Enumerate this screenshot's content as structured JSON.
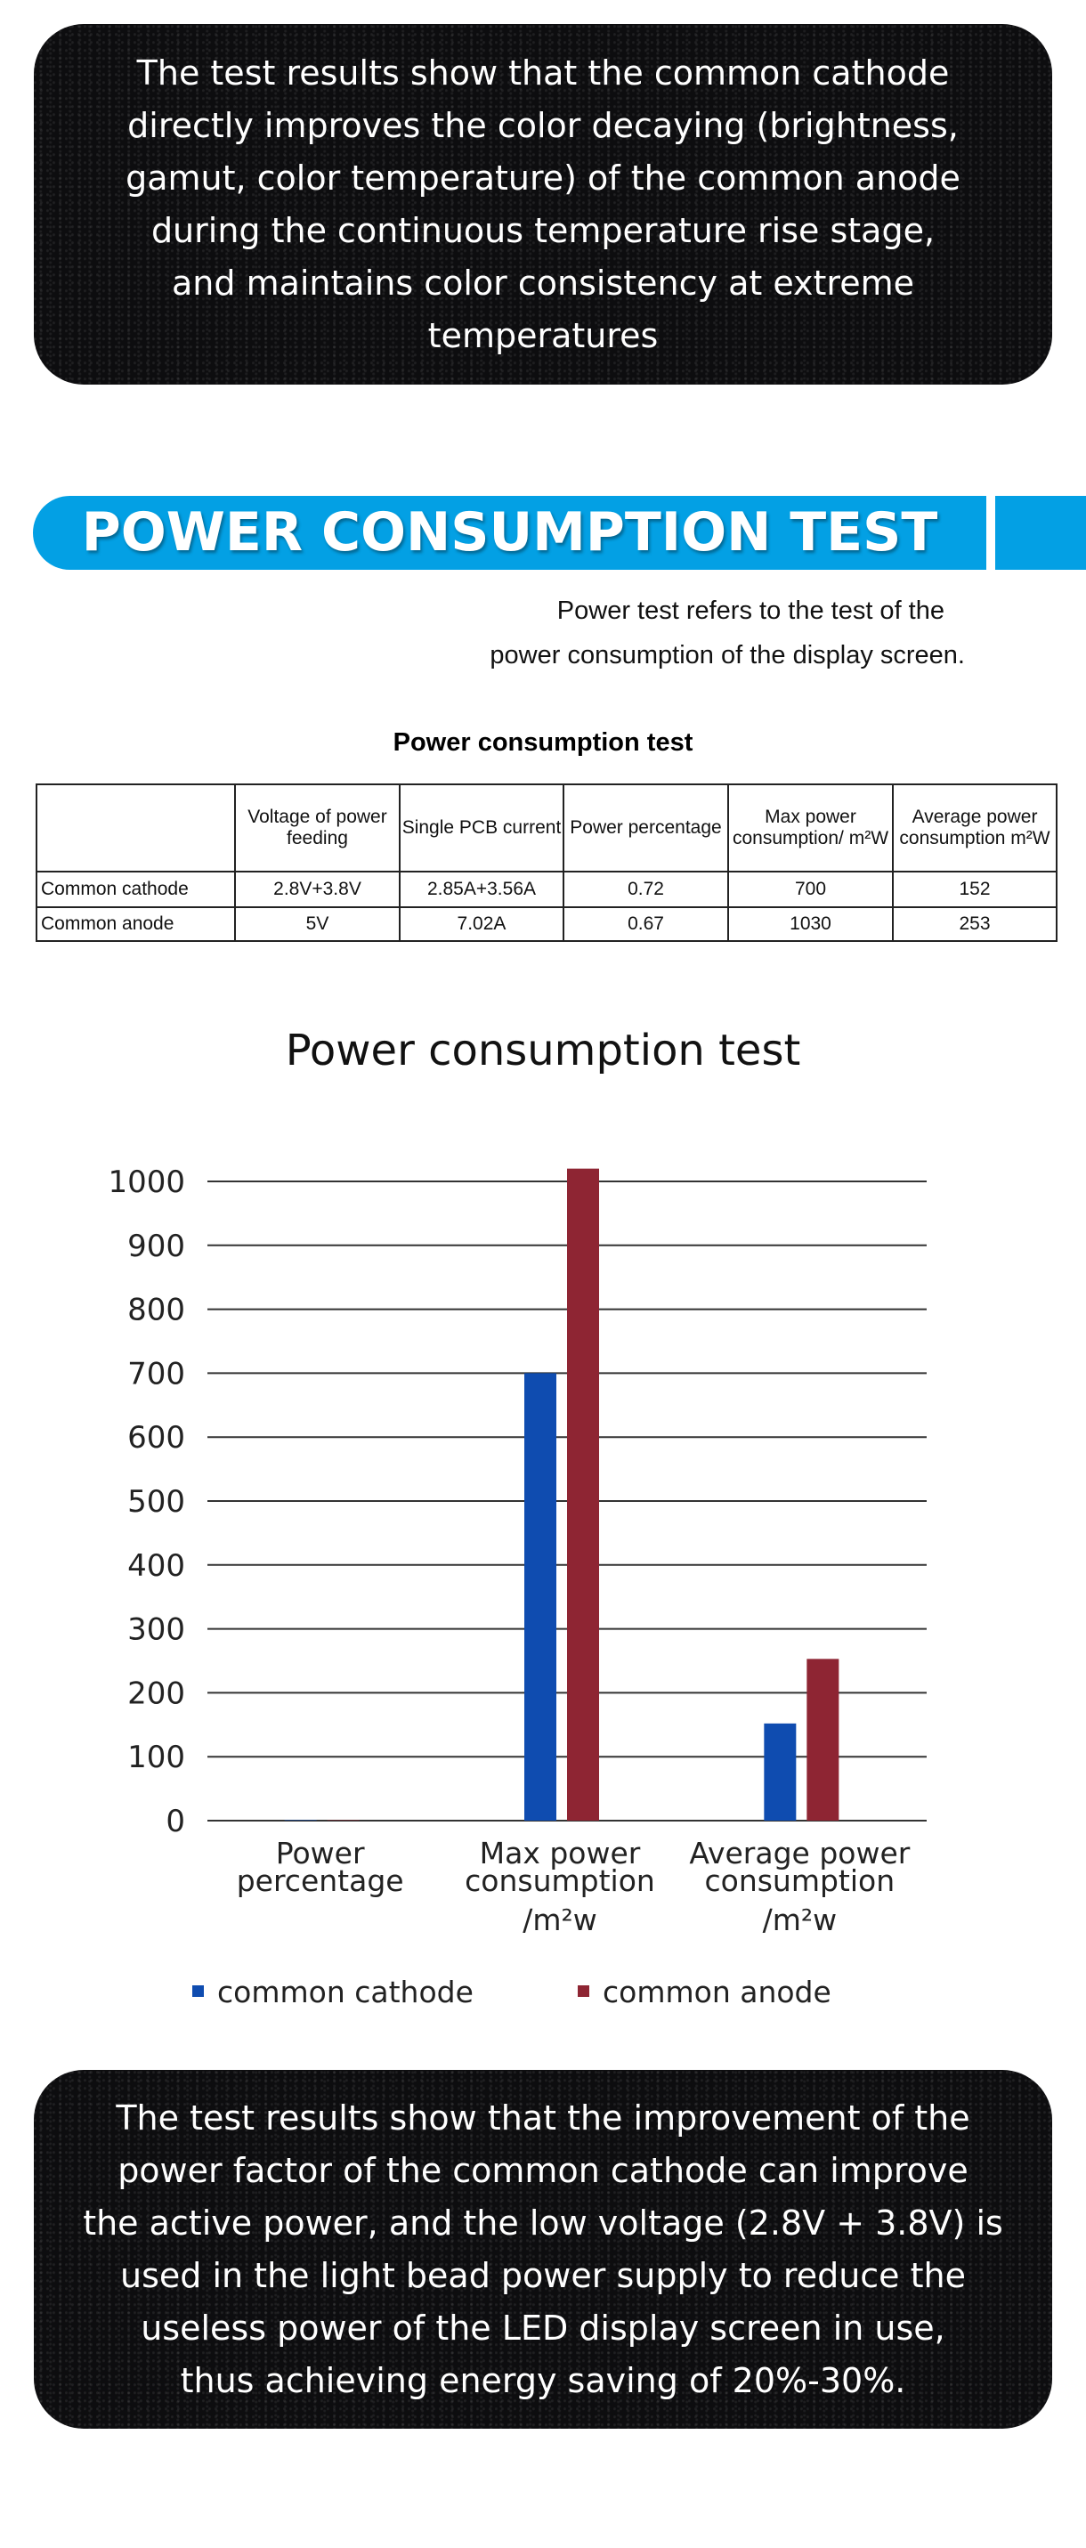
{
  "intro_box": {
    "lines": [
      "The test results show that the common cathode",
      "directly improves the color decaying (brightness,",
      "gamut, color temperature) of the common anode",
      "during the continuous temperature rise stage,",
      "and maintains color consistency at extreme",
      "temperatures"
    ]
  },
  "section": {
    "title": "POWER CONSUMPTION TEST",
    "description": [
      "Power test refers to the test of the",
      "power consumption of the display screen."
    ]
  },
  "table": {
    "title": "Power consumption test",
    "headers": [
      "",
      "Voltage of power feeding",
      "Single PCB current",
      "Power percentage",
      "Max power consumption/ m²W",
      "Average power consumption m²W"
    ],
    "rows": [
      [
        "Common cathode",
        "2.8V+3.8V",
        "2.85A+3.56A",
        "0.72",
        "700",
        "152"
      ],
      [
        "Common anode",
        "5V",
        "7.02A",
        "0.67",
        "1030",
        "253"
      ]
    ]
  },
  "chart_data": {
    "type": "bar",
    "title": "Power consumption test",
    "categories": [
      "Power percentage",
      "Max power consumption /m²w",
      "Average power consumption /m²w"
    ],
    "category_lines": [
      [
        "Power",
        "percentage"
      ],
      [
        "Max power",
        "consumption",
        "/m²w"
      ],
      [
        "Average power",
        "consumption",
        "/m²w"
      ]
    ],
    "series": [
      {
        "name": "common cathode",
        "color": "#0f4cb0",
        "values": [
          0.72,
          700,
          152
        ]
      },
      {
        "name": "common anode",
        "color": "#8e2533",
        "values": [
          0.67,
          1030,
          253
        ]
      }
    ],
    "ylim": [
      0,
      1000
    ],
    "yticks": [
      0,
      100,
      200,
      300,
      400,
      500,
      600,
      700,
      800,
      900,
      1000
    ],
    "grid": true,
    "legend": "bottom"
  },
  "conclusion_box": {
    "lines": [
      "The test results show that the improvement of the",
      "power factor of the common cathode can improve",
      "the active power, and the low voltage (2.8V + 3.8V) is",
      "used in the light bead power supply to reduce the",
      "useless power of the LED display screen in use,",
      "thus achieving energy saving of 20%-30%."
    ]
  }
}
